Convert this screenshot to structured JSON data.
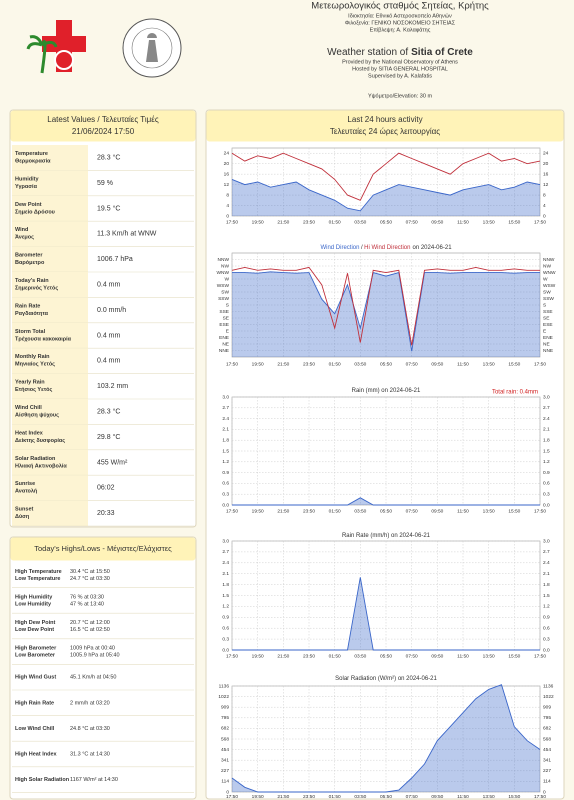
{
  "header": {
    "greek_title": "Μετεωρολογικός σταθμός Σητείας, Κρήτης",
    "greek_lines": [
      "Ιδιοκτησία: Εθνικό Αστεροσκοπείο Αθηνών",
      "Φιλοξενία: ΓΕΝΙΚΟ ΝΟΣΟΚΟΜΕΙΟ ΣΗΤΕΙΑΣ",
      "Επίβλεψη: Α. Καλαφάτης"
    ],
    "title_prefix": "Weather station of",
    "title_name": "Sitia of Crete",
    "english_lines": [
      "Provided by the National Observatory of Athens",
      "Hosted by SITIA GENERAL HOSPITAL",
      "Supervised by A. Kalafatis"
    ],
    "elevation": "Υψόμετρο/Elevation: 30 m"
  },
  "latest": {
    "title": "Latest Values / Τελευταίες Τιμές",
    "date": "21/06/2024 17:50",
    "rows": [
      {
        "label": "Temperature",
        "label_gr": "Θερμοκρασία",
        "value": "28.3 °C"
      },
      {
        "label": "Humidity",
        "label_gr": "Υγρασία",
        "value": "59 %"
      },
      {
        "label": "Dew Point",
        "label_gr": "Σημείο Δρόσου",
        "value": "19.5 °C"
      },
      {
        "label": "Wind",
        "label_gr": "Άνεμος",
        "value": "11.3 Km/h at WNW"
      },
      {
        "label": "Barometer",
        "label_gr": "Βαρόμετρο",
        "value": "1006.7 hPa"
      },
      {
        "label": "Today's Rain",
        "label_gr": "Σημερινός Υετός",
        "value": "0.4 mm"
      },
      {
        "label": "Rain Rate",
        "label_gr": "Ραγδαιότητα",
        "value": "0.0 mm/h"
      },
      {
        "label": "Storm Total",
        "label_gr": "Τρέχουσα κακοκαιρία",
        "value": "0.4 mm"
      },
      {
        "label": "Monthly Rain",
        "label_gr": "Μηνιαίος Υετός",
        "value": "0.4 mm"
      },
      {
        "label": "Yearly Rain",
        "label_gr": "Ετήσιος Υετός",
        "value": "103.2 mm"
      },
      {
        "label": "Wind Chill",
        "label_gr": "Αίσθηση ψύχους",
        "value": "28.3 °C"
      },
      {
        "label": "Heat Index",
        "label_gr": "Δείκτης δυσφορίας",
        "value": "29.8 °C"
      },
      {
        "label": "Solar Radiation",
        "label_gr": "Ηλιακή Ακτινοβολία",
        "value": "455 W/m²"
      },
      {
        "label": "Sunrise",
        "label_gr": "Ανατολή",
        "value": "06:02"
      },
      {
        "label": "Sunset",
        "label_gr": "Δύση",
        "value": "20:33"
      }
    ]
  },
  "highs": {
    "title": "Today's Highs/Lows - Μέγιστες/Ελάχιστες",
    "rows": [
      {
        "labels": [
          "High Temperature",
          "Low Temperature"
        ],
        "values": [
          "30.4 °C at 15:50",
          "24.7 °C at 03:30"
        ]
      },
      {
        "labels": [
          "High Humidity",
          "Low Humidity"
        ],
        "values": [
          "76 % at 03:30",
          "47 % at 13:40"
        ]
      },
      {
        "labels": [
          "High Dew Point",
          "Low Dew Point"
        ],
        "values": [
          "20.7 °C at 12:00",
          "16.5 °C at 02:50"
        ]
      },
      {
        "labels": [
          "High Barometer",
          "Low Barometer"
        ],
        "values": [
          "1009 hPa at 00:40",
          "1005.9 hPa at 05:40"
        ]
      },
      {
        "labels": [
          "High Wind Gust"
        ],
        "values": [
          "45.1 Km/h at 04:50"
        ]
      },
      {
        "labels": [
          "High Rain Rate"
        ],
        "values": [
          "2 mm/h at 03:20"
        ]
      },
      {
        "labels": [
          "Low Wind Chill"
        ],
        "values": [
          "24.8 °C at 03:30"
        ]
      },
      {
        "labels": [
          "High Heat Index"
        ],
        "values": [
          "31.3 °C at 14:30"
        ]
      },
      {
        "labels": [
          "High Solar Radiation"
        ],
        "values": [
          "1167 W/m² at 14:30"
        ]
      }
    ]
  },
  "activity": {
    "title": "Last 24 hours activity",
    "subtitle": "Τελευταίες 24 ώρες λειτουργίας",
    "time_labels": [
      "17:50",
      "19:50",
      "21:50",
      "23:50",
      "01:50",
      "03:50",
      "05:50",
      "07:50",
      "09:50",
      "11:50",
      "13:50",
      "15:50",
      "17:50"
    ]
  },
  "chart_data": [
    {
      "type": "line",
      "ylim": [
        0,
        26
      ],
      "yticks": [
        0,
        4,
        8,
        12,
        16,
        20,
        24
      ],
      "grid": true,
      "series": [
        {
          "color": "#3a66c9",
          "area": true,
          "values": [
            14,
            12,
            13,
            11,
            12,
            13,
            10,
            8,
            6,
            3,
            2,
            8,
            10,
            12,
            11,
            10,
            9,
            8,
            10,
            11,
            12,
            10,
            11,
            13,
            12
          ]
        },
        {
          "color": "#c0303b",
          "area": false,
          "values": [
            24,
            21,
            23,
            22,
            24,
            22,
            20,
            18,
            14,
            8,
            6,
            16,
            20,
            24,
            22,
            20,
            18,
            16,
            20,
            22,
            24,
            21,
            22,
            20,
            21
          ]
        }
      ]
    },
    {
      "type": "line",
      "title": "on 2024-06-21",
      "title_joiner": "/",
      "ylim": [
        0,
        360
      ],
      "yticks": [
        {
          "value": 22.5,
          "label": "NNE"
        },
        {
          "value": 45,
          "label": "NE"
        },
        {
          "value": 67.5,
          "label": "ENE"
        },
        {
          "value": 90,
          "label": "E"
        },
        {
          "value": 112.5,
          "label": "ESE"
        },
        {
          "value": 135,
          "label": "SE"
        },
        {
          "value": 157.5,
          "label": "SSE"
        },
        {
          "value": 180,
          "label": "S"
        },
        {
          "value": 202.5,
          "label": "SSW"
        },
        {
          "value": 225,
          "label": "SW"
        },
        {
          "value": 247.5,
          "label": "WSW"
        },
        {
          "value": 270,
          "label": "W"
        },
        {
          "value": 292.5,
          "label": "WNW"
        },
        {
          "value": 315,
          "label": "NW"
        },
        {
          "value": 337.5,
          "label": "NNW"
        }
      ],
      "grid": true,
      "series": [
        {
          "name": "Wind Direction",
          "color": "#3a66c9",
          "area": true,
          "values": [
            292,
            292,
            290,
            295,
            292,
            290,
            292,
            200,
            150,
            250,
            100,
            292,
            280,
            292,
            20,
            292,
            292,
            290,
            292,
            292,
            292,
            292,
            290,
            292,
            292
          ]
        },
        {
          "name": "Hi Wind Direction",
          "color": "#c0303b",
          "area": false,
          "values": [
            300,
            310,
            300,
            305,
            300,
            300,
            310,
            250,
            100,
            290,
            50,
            300,
            292,
            300,
            40,
            300,
            305,
            300,
            300,
            310,
            300,
            300,
            305,
            300,
            300
          ]
        }
      ]
    },
    {
      "type": "line",
      "title": "Rain (mm) on 2024-06-21",
      "annotation": "Total rain: 0.4mm",
      "ylim": [
        0,
        3
      ],
      "yticks": [
        {
          "value": 0,
          "label": "0.0"
        },
        0.3,
        0.6,
        0.9,
        1.2,
        1.5,
        1.8,
        2.1,
        2.4,
        2.7,
        {
          "value": 3,
          "label": "3.0"
        }
      ],
      "grid": true,
      "series": [
        {
          "color": "#3a66c9",
          "area": true,
          "values": [
            0,
            0,
            0,
            0,
            0,
            0,
            0,
            0,
            0,
            0,
            0.2,
            0,
            0,
            0,
            0,
            0,
            0,
            0,
            0,
            0,
            0,
            0,
            0,
            0,
            0
          ]
        }
      ]
    },
    {
      "type": "line",
      "title": "Rain Rate (mm/h) on 2024-06-21",
      "ylim": [
        0,
        3
      ],
      "yticks": [
        {
          "value": 0,
          "label": "0.0"
        },
        0.3,
        0.6,
        0.9,
        1.2,
        1.5,
        1.8,
        2.1,
        2.4,
        2.7,
        {
          "value": 3,
          "label": "3.0"
        }
      ],
      "grid": true,
      "series": [
        {
          "color": "#3a66c9",
          "area": true,
          "values": [
            0,
            0,
            0,
            0,
            0,
            0,
            0,
            0,
            0,
            0,
            2,
            0,
            0,
            0,
            0,
            0,
            0,
            0,
            0,
            0,
            0,
            0,
            0,
            0,
            0
          ]
        }
      ]
    },
    {
      "type": "line",
      "title": "Solar Radiation (W/m²) on 2024-06-21",
      "ylim": [
        0,
        1136
      ],
      "yticks": [
        0,
        114,
        227,
        341,
        454,
        568,
        682,
        795,
        909,
        1022,
        1136
      ],
      "grid": true,
      "series": [
        {
          "color": "#3a66c9",
          "area": true,
          "values": [
            150,
            50,
            0,
            0,
            0,
            0,
            0,
            0,
            0,
            0,
            0,
            0,
            0,
            20,
            150,
            300,
            550,
            700,
            850,
            1000,
            1100,
            1150,
            700,
            550,
            455
          ]
        }
      ]
    }
  ]
}
